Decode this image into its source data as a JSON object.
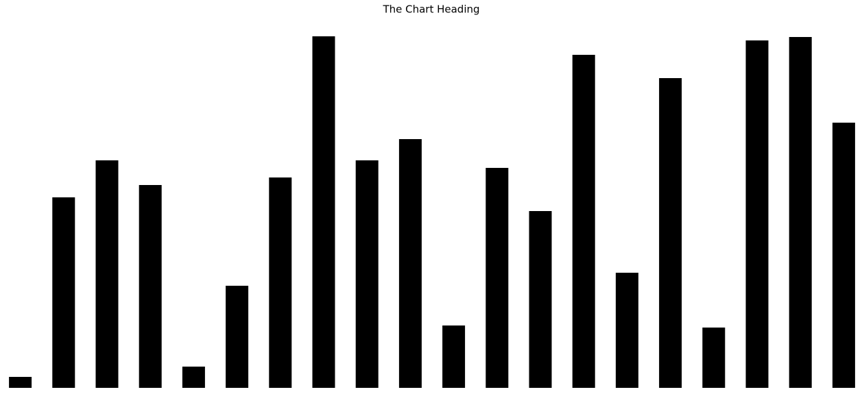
{
  "chart_data": {
    "type": "bar",
    "title": "The Chart Heading",
    "values": [
      16,
      278,
      332,
      296,
      31,
      149,
      307,
      513,
      332,
      363,
      91,
      321,
      258,
      486,
      168,
      452,
      88,
      507,
      512,
      387
    ],
    "color": "#000000",
    "ylim": [
      0,
      513
    ],
    "grid": false
  }
}
